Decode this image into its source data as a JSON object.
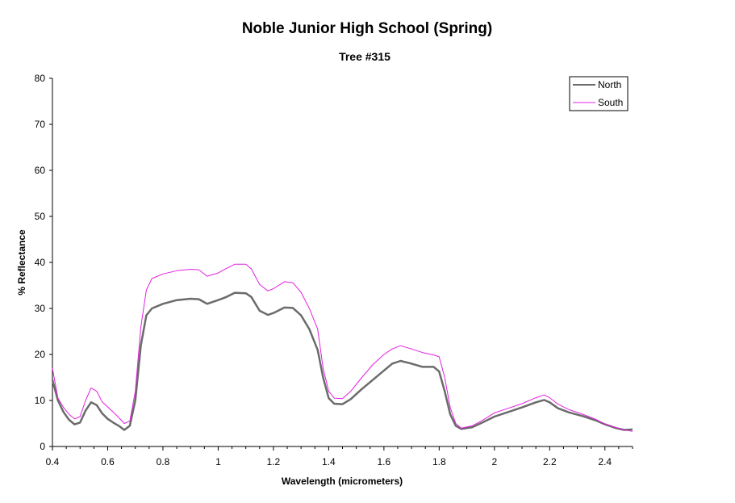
{
  "chart_data": {
    "type": "line",
    "title": "Noble Junior High School (Spring)",
    "subtitle": "Tree #315",
    "xlabel": "Wavelength (micrometers)",
    "ylabel": "% Reflectance",
    "xlim": [
      0.4,
      2.5
    ],
    "ylim": [
      0,
      80
    ],
    "xticks": [
      "0.4",
      "0.6",
      "0.8",
      "1",
      "1.2",
      "1.4",
      "1.6",
      "1.8",
      "2",
      "2.2",
      "2.4"
    ],
    "yticks": [
      "0",
      "10",
      "20",
      "30",
      "40",
      "50",
      "60",
      "70",
      "80"
    ],
    "legend_position": "top-right",
    "grid": false,
    "series": [
      {
        "name": "North",
        "color": "#6b6b6b",
        "points": [
          [
            0.4,
            14.5
          ],
          [
            0.42,
            10.0
          ],
          [
            0.44,
            7.5
          ],
          [
            0.46,
            5.8
          ],
          [
            0.48,
            4.8
          ],
          [
            0.5,
            5.2
          ],
          [
            0.52,
            7.8
          ],
          [
            0.54,
            9.6
          ],
          [
            0.56,
            9.0
          ],
          [
            0.58,
            7.2
          ],
          [
            0.6,
            6.0
          ],
          [
            0.62,
            5.2
          ],
          [
            0.64,
            4.5
          ],
          [
            0.66,
            3.6
          ],
          [
            0.68,
            4.5
          ],
          [
            0.7,
            10.0
          ],
          [
            0.72,
            22.0
          ],
          [
            0.74,
            28.5
          ],
          [
            0.76,
            30.0
          ],
          [
            0.8,
            31.0
          ],
          [
            0.85,
            31.8
          ],
          [
            0.9,
            32.1
          ],
          [
            0.93,
            32.0
          ],
          [
            0.96,
            31.0
          ],
          [
            1.0,
            31.8
          ],
          [
            1.03,
            32.5
          ],
          [
            1.06,
            33.4
          ],
          [
            1.1,
            33.3
          ],
          [
            1.12,
            32.5
          ],
          [
            1.15,
            29.5
          ],
          [
            1.18,
            28.6
          ],
          [
            1.2,
            29.0
          ],
          [
            1.24,
            30.2
          ],
          [
            1.27,
            30.1
          ],
          [
            1.3,
            28.5
          ],
          [
            1.33,
            25.5
          ],
          [
            1.36,
            21.0
          ],
          [
            1.38,
            15.0
          ],
          [
            1.4,
            10.5
          ],
          [
            1.42,
            9.3
          ],
          [
            1.45,
            9.2
          ],
          [
            1.48,
            10.3
          ],
          [
            1.52,
            12.5
          ],
          [
            1.56,
            14.5
          ],
          [
            1.6,
            16.5
          ],
          [
            1.63,
            18.0
          ],
          [
            1.66,
            18.6
          ],
          [
            1.7,
            18.0
          ],
          [
            1.74,
            17.3
          ],
          [
            1.78,
            17.3
          ],
          [
            1.8,
            16.3
          ],
          [
            1.82,
            12.0
          ],
          [
            1.84,
            7.0
          ],
          [
            1.86,
            4.5
          ],
          [
            1.88,
            3.8
          ],
          [
            1.92,
            4.2
          ],
          [
            1.96,
            5.3
          ],
          [
            2.0,
            6.5
          ],
          [
            2.05,
            7.5
          ],
          [
            2.1,
            8.5
          ],
          [
            2.15,
            9.6
          ],
          [
            2.18,
            10.1
          ],
          [
            2.2,
            9.6
          ],
          [
            2.23,
            8.3
          ],
          [
            2.27,
            7.4
          ],
          [
            2.32,
            6.6
          ],
          [
            2.37,
            5.6
          ],
          [
            2.4,
            4.8
          ],
          [
            2.44,
            4.0
          ],
          [
            2.47,
            3.6
          ],
          [
            2.5,
            3.7
          ]
        ]
      },
      {
        "name": "South",
        "color": "#e020e0",
        "points": [
          [
            0.4,
            17.0
          ],
          [
            0.42,
            10.5
          ],
          [
            0.44,
            8.5
          ],
          [
            0.46,
            7.0
          ],
          [
            0.48,
            6.0
          ],
          [
            0.5,
            6.5
          ],
          [
            0.52,
            10.0
          ],
          [
            0.54,
            12.7
          ],
          [
            0.56,
            12.0
          ],
          [
            0.58,
            9.7
          ],
          [
            0.6,
            8.6
          ],
          [
            0.62,
            7.5
          ],
          [
            0.64,
            6.3
          ],
          [
            0.66,
            5.0
          ],
          [
            0.68,
            5.5
          ],
          [
            0.7,
            12.0
          ],
          [
            0.72,
            26.0
          ],
          [
            0.74,
            34.0
          ],
          [
            0.76,
            36.5
          ],
          [
            0.8,
            37.5
          ],
          [
            0.85,
            38.2
          ],
          [
            0.9,
            38.5
          ],
          [
            0.93,
            38.4
          ],
          [
            0.96,
            37.0
          ],
          [
            1.0,
            37.7
          ],
          [
            1.03,
            38.7
          ],
          [
            1.06,
            39.6
          ],
          [
            1.1,
            39.6
          ],
          [
            1.12,
            38.6
          ],
          [
            1.15,
            35.2
          ],
          [
            1.18,
            33.8
          ],
          [
            1.2,
            34.3
          ],
          [
            1.24,
            35.8
          ],
          [
            1.27,
            35.6
          ],
          [
            1.3,
            33.5
          ],
          [
            1.33,
            30.0
          ],
          [
            1.36,
            25.5
          ],
          [
            1.38,
            17.0
          ],
          [
            1.4,
            12.0
          ],
          [
            1.42,
            10.5
          ],
          [
            1.45,
            10.4
          ],
          [
            1.48,
            12.0
          ],
          [
            1.52,
            15.0
          ],
          [
            1.56,
            17.8
          ],
          [
            1.6,
            20.0
          ],
          [
            1.63,
            21.2
          ],
          [
            1.66,
            21.9
          ],
          [
            1.7,
            21.2
          ],
          [
            1.74,
            20.4
          ],
          [
            1.78,
            19.9
          ],
          [
            1.8,
            19.5
          ],
          [
            1.82,
            15.0
          ],
          [
            1.84,
            8.5
          ],
          [
            1.86,
            5.0
          ],
          [
            1.88,
            4.0
          ],
          [
            1.92,
            4.5
          ],
          [
            1.96,
            5.8
          ],
          [
            2.0,
            7.3
          ],
          [
            2.05,
            8.3
          ],
          [
            2.1,
            9.3
          ],
          [
            2.15,
            10.6
          ],
          [
            2.18,
            11.2
          ],
          [
            2.2,
            10.6
          ],
          [
            2.23,
            9.2
          ],
          [
            2.27,
            8.0
          ],
          [
            2.32,
            7.0
          ],
          [
            2.37,
            5.8
          ],
          [
            2.4,
            4.9
          ],
          [
            2.44,
            4.1
          ],
          [
            2.47,
            3.6
          ],
          [
            2.5,
            3.3
          ]
        ]
      }
    ]
  }
}
